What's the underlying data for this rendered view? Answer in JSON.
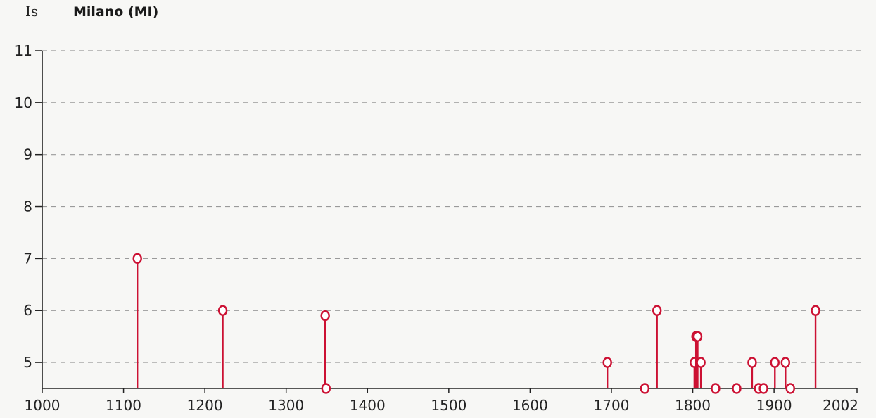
{
  "chart_data": {
    "type": "scatter",
    "title": "Milano (MI)",
    "ylabel": "Is",
    "xlabel": "",
    "xlim": [
      1000,
      2002
    ],
    "ylim": [
      4.5,
      11
    ],
    "x_ticks": [
      1000,
      1100,
      1200,
      1300,
      1400,
      1500,
      1600,
      1700,
      1800,
      1900,
      2002
    ],
    "y_ticks": [
      5,
      6,
      7,
      8,
      9,
      10,
      11
    ],
    "grid": "horizontal dashed",
    "baseline": 4.5,
    "series": [
      {
        "color": "#cc1133",
        "x": [
          1117,
          1222,
          1348,
          1349,
          1695,
          1741,
          1756,
          1802,
          1804,
          1806,
          1810,
          1828,
          1854,
          1873,
          1881,
          1887,
          1901,
          1914,
          1920,
          1951
        ],
        "y": [
          7,
          6,
          5.9,
          4.5,
          5,
          4.5,
          6,
          5,
          5.5,
          5.5,
          5,
          4.5,
          4.5,
          5,
          4.5,
          4.5,
          5,
          5,
          4.5,
          6
        ]
      }
    ]
  }
}
